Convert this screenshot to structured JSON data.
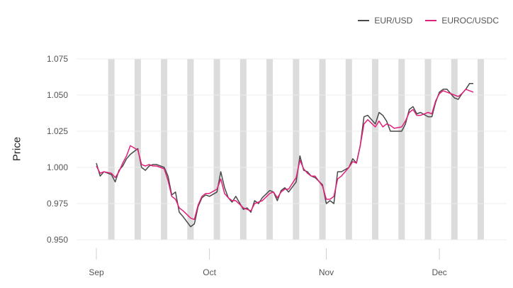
{
  "chart_data": {
    "type": "line",
    "ylabel": "Price",
    "xlabel": "",
    "ylim": [
      0.95,
      1.075
    ],
    "yticks": [
      0.95,
      0.975,
      1.0,
      1.025,
      1.05,
      1.075
    ],
    "ytick_labels": [
      "0.950",
      "0.975",
      "1.000",
      "1.025",
      "1.050",
      "1.075"
    ],
    "xtick_labels": [
      "Sep",
      "Oct",
      "Nov",
      "Dec"
    ],
    "xtick_dates": [
      "2022-09-01",
      "2022-10-01",
      "2022-11-01",
      "2022-12-01"
    ],
    "xlim": [
      "2022-09-01",
      "2022-12-10"
    ],
    "grid": "horizontal",
    "legend_position": "top-right",
    "shaded_ranges": [
      [
        "2022-09-03",
        "2022-09-04"
      ],
      [
        "2022-09-10",
        "2022-09-11"
      ],
      [
        "2022-09-17",
        "2022-09-18"
      ],
      [
        "2022-09-24",
        "2022-09-25"
      ],
      [
        "2022-10-01",
        "2022-10-02"
      ],
      [
        "2022-10-08",
        "2022-10-09"
      ],
      [
        "2022-10-15",
        "2022-10-16"
      ],
      [
        "2022-10-22",
        "2022-10-23"
      ],
      [
        "2022-10-29",
        "2022-10-30"
      ],
      [
        "2022-11-05",
        "2022-11-06"
      ],
      [
        "2022-11-12",
        "2022-11-13"
      ],
      [
        "2022-11-19",
        "2022-11-20"
      ],
      [
        "2022-11-26",
        "2022-11-27"
      ],
      [
        "2022-12-03",
        "2022-12-04"
      ],
      [
        "2022-12-10",
        "2022-12-11"
      ]
    ],
    "series": [
      {
        "name": "EUR/USD",
        "color": "#4a4a4a",
        "x": [
          "2022-09-01",
          "2022-09-02",
          "2022-09-03",
          "2022-09-05",
          "2022-09-06",
          "2022-09-07",
          "2022-09-08",
          "2022-09-09",
          "2022-09-10",
          "2022-09-12",
          "2022-09-13",
          "2022-09-14",
          "2022-09-15",
          "2022-09-16",
          "2022-09-17",
          "2022-09-19",
          "2022-09-20",
          "2022-09-21",
          "2022-09-22",
          "2022-09-23",
          "2022-09-24",
          "2022-09-26",
          "2022-09-27",
          "2022-09-28",
          "2022-09-29",
          "2022-09-30",
          "2022-10-01",
          "2022-10-03",
          "2022-10-04",
          "2022-10-05",
          "2022-10-06",
          "2022-10-07",
          "2022-10-08",
          "2022-10-10",
          "2022-10-11",
          "2022-10-12",
          "2022-10-13",
          "2022-10-14",
          "2022-10-15",
          "2022-10-17",
          "2022-10-18",
          "2022-10-19",
          "2022-10-20",
          "2022-10-21",
          "2022-10-22",
          "2022-10-24",
          "2022-10-25",
          "2022-10-26",
          "2022-10-27",
          "2022-10-28",
          "2022-10-29",
          "2022-10-31",
          "2022-11-01",
          "2022-11-02",
          "2022-11-03",
          "2022-11-04",
          "2022-11-05",
          "2022-11-07",
          "2022-11-08",
          "2022-11-09",
          "2022-11-10",
          "2022-11-11",
          "2022-11-12",
          "2022-11-14",
          "2022-11-15",
          "2022-11-16",
          "2022-11-17",
          "2022-11-18",
          "2022-11-19",
          "2022-11-21",
          "2022-11-22",
          "2022-11-23",
          "2022-11-24",
          "2022-11-25",
          "2022-11-26",
          "2022-11-28",
          "2022-11-29",
          "2022-11-30",
          "2022-12-01",
          "2022-12-02",
          "2022-12-03",
          "2022-12-05",
          "2022-12-06",
          "2022-12-07",
          "2022-12-08",
          "2022-12-09",
          "2022-12-10"
        ],
        "y": [
          1.003,
          0.994,
          0.997,
          0.995,
          0.99,
          0.998,
          1.001,
          1.006,
          1.009,
          1.013,
          1.0,
          0.998,
          1.001,
          1.002,
          1.002,
          1.0,
          0.994,
          0.981,
          0.983,
          0.969,
          0.966,
          0.959,
          0.961,
          0.973,
          0.979,
          0.981,
          0.98,
          0.983,
          0.997,
          0.986,
          0.979,
          0.976,
          0.98,
          0.971,
          0.972,
          0.969,
          0.977,
          0.975,
          0.979,
          0.984,
          0.983,
          0.977,
          0.984,
          0.986,
          0.983,
          0.99,
          1.008,
          0.998,
          0.997,
          0.994,
          0.993,
          0.988,
          0.975,
          0.977,
          0.975,
          0.997,
          0.997,
          1.0,
          1.006,
          1.003,
          1.015,
          1.035,
          1.036,
          1.03,
          1.038,
          1.036,
          1.032,
          1.025,
          1.025,
          1.025,
          1.03,
          1.04,
          1.042,
          1.037,
          1.038,
          1.035,
          1.035,
          1.045,
          1.052,
          1.054,
          1.054,
          1.048,
          1.047,
          1.051,
          1.054,
          1.058,
          1.058
        ]
      },
      {
        "name": "EUROC/USDC",
        "color": "#e0207a",
        "x": [
          "2022-09-01",
          "2022-09-02",
          "2022-09-03",
          "2022-09-05",
          "2022-09-06",
          "2022-09-07",
          "2022-09-08",
          "2022-09-09",
          "2022-09-10",
          "2022-09-12",
          "2022-09-13",
          "2022-09-14",
          "2022-09-15",
          "2022-09-16",
          "2022-09-17",
          "2022-09-19",
          "2022-09-20",
          "2022-09-21",
          "2022-09-22",
          "2022-09-23",
          "2022-09-24",
          "2022-09-26",
          "2022-09-27",
          "2022-09-28",
          "2022-09-29",
          "2022-09-30",
          "2022-10-01",
          "2022-10-03",
          "2022-10-04",
          "2022-10-05",
          "2022-10-06",
          "2022-10-07",
          "2022-10-08",
          "2022-10-10",
          "2022-10-11",
          "2022-10-12",
          "2022-10-13",
          "2022-10-14",
          "2022-10-15",
          "2022-10-17",
          "2022-10-18",
          "2022-10-19",
          "2022-10-20",
          "2022-10-21",
          "2022-10-22",
          "2022-10-24",
          "2022-10-25",
          "2022-10-26",
          "2022-10-27",
          "2022-10-28",
          "2022-10-29",
          "2022-10-31",
          "2022-11-01",
          "2022-11-02",
          "2022-11-03",
          "2022-11-04",
          "2022-11-05",
          "2022-11-07",
          "2022-11-08",
          "2022-11-09",
          "2022-11-10",
          "2022-11-11",
          "2022-11-12",
          "2022-11-14",
          "2022-11-15",
          "2022-11-16",
          "2022-11-17",
          "2022-11-18",
          "2022-11-19",
          "2022-11-21",
          "2022-11-22",
          "2022-11-23",
          "2022-11-24",
          "2022-11-25",
          "2022-11-26",
          "2022-11-28",
          "2022-11-29",
          "2022-11-30",
          "2022-12-01",
          "2022-12-02",
          "2022-12-03",
          "2022-12-05",
          "2022-12-06",
          "2022-12-07",
          "2022-12-08",
          "2022-12-09",
          "2022-12-10"
        ],
        "y": [
          1.001,
          0.996,
          0.997,
          0.996,
          0.993,
          0.997,
          1.003,
          1.008,
          1.015,
          1.012,
          1.002,
          1.001,
          1.002,
          1.001,
          1.001,
          0.999,
          0.991,
          0.98,
          0.978,
          0.972,
          0.97,
          0.965,
          0.964,
          0.974,
          0.98,
          0.982,
          0.982,
          0.985,
          0.992,
          0.982,
          0.979,
          0.977,
          0.977,
          0.972,
          0.971,
          0.97,
          0.975,
          0.976,
          0.977,
          0.982,
          0.983,
          0.979,
          0.983,
          0.985,
          0.985,
          0.993,
          1.005,
          0.999,
          0.996,
          0.994,
          0.994,
          0.987,
          0.978,
          0.978,
          0.98,
          0.992,
          0.994,
          1.0,
          1.004,
          1.003,
          1.015,
          1.03,
          1.033,
          1.028,
          1.032,
          1.028,
          1.03,
          1.029,
          1.027,
          1.028,
          1.032,
          1.038,
          1.04,
          1.036,
          1.036,
          1.038,
          1.037,
          1.046,
          1.051,
          1.053,
          1.052,
          1.05,
          1.049,
          1.051,
          1.054,
          1.053,
          1.052
        ]
      }
    ]
  }
}
